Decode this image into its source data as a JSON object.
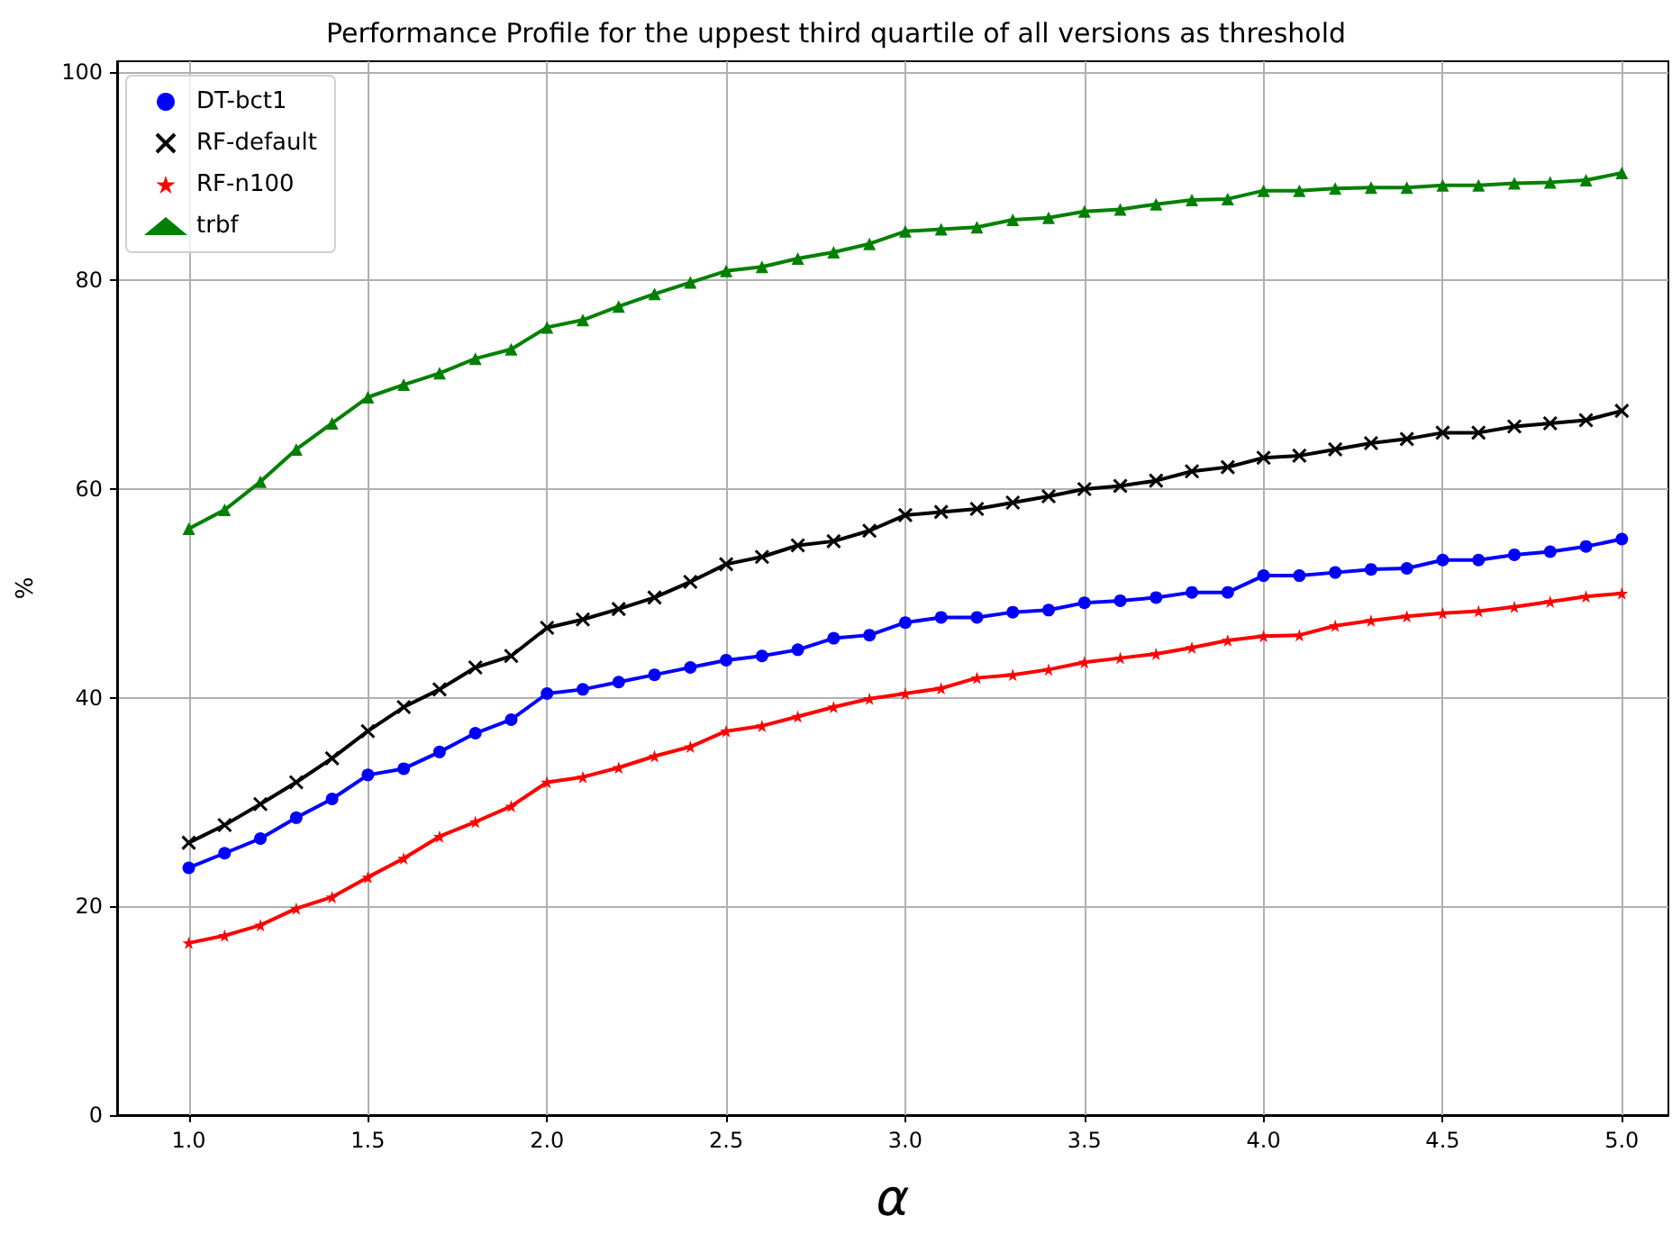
{
  "chart_data": {
    "type": "line",
    "title": "Performance Profile for the uppest third quartile of all versions as threshold",
    "xlabel": "α",
    "ylabel": "%",
    "x": [
      1.0,
      1.1,
      1.2,
      1.3,
      1.4,
      1.5,
      1.6,
      1.7,
      1.8,
      1.9,
      2.0,
      2.1,
      2.2,
      2.3,
      2.4,
      2.5,
      2.6,
      2.7,
      2.8,
      2.9,
      3.0,
      3.1,
      3.2,
      3.3,
      3.4,
      3.5,
      3.6,
      3.7,
      3.8,
      3.9,
      4.0,
      4.1,
      4.2,
      4.3,
      4.4,
      4.5,
      4.6,
      4.7,
      4.8,
      4.9,
      5.0
    ],
    "series": [
      {
        "name": "DT-bct1",
        "color": "#0000ff",
        "marker": "circle",
        "values": [
          23.7,
          25.1,
          26.5,
          28.5,
          30.3,
          32.6,
          33.2,
          34.8,
          36.6,
          37.9,
          40.4,
          40.8,
          41.5,
          42.2,
          42.9,
          43.6,
          44.0,
          44.6,
          45.7,
          46.0,
          47.2,
          47.7,
          47.7,
          48.2,
          48.4,
          49.1,
          49.3,
          49.6,
          50.1,
          50.1,
          51.7,
          51.7,
          52.0,
          52.3,
          52.4,
          53.2,
          53.2,
          53.7,
          54.0,
          54.5,
          55.2
        ]
      },
      {
        "name": "RF-default",
        "color": "#000000",
        "marker": "cross",
        "values": [
          26.1,
          27.8,
          29.8,
          31.9,
          34.2,
          36.8,
          39.1,
          40.8,
          42.9,
          44.0,
          46.7,
          47.5,
          48.5,
          49.6,
          51.1,
          52.8,
          53.5,
          54.6,
          55.0,
          56.0,
          57.5,
          57.8,
          58.1,
          58.7,
          59.3,
          60.0,
          60.3,
          60.8,
          61.7,
          62.1,
          63.0,
          63.2,
          63.8,
          64.4,
          64.8,
          65.4,
          65.4,
          66.0,
          66.3,
          66.6,
          67.5
        ]
      },
      {
        "name": "RF-n100",
        "color": "#ff0000",
        "marker": "star",
        "values": [
          16.5,
          17.2,
          18.2,
          19.8,
          20.9,
          22.8,
          24.6,
          26.7,
          28.1,
          29.6,
          31.9,
          32.4,
          33.3,
          34.4,
          35.3,
          36.8,
          37.3,
          38.2,
          39.1,
          39.9,
          40.4,
          40.9,
          41.9,
          42.2,
          42.7,
          43.4,
          43.8,
          44.2,
          44.8,
          45.5,
          45.9,
          46.0,
          46.9,
          47.4,
          47.8,
          48.1,
          48.3,
          48.7,
          49.2,
          49.7,
          50.0
        ]
      },
      {
        "name": "trbf",
        "color": "#008000",
        "marker": "triangle",
        "values": [
          56.2,
          58.0,
          60.7,
          63.8,
          66.3,
          68.8,
          70.0,
          71.1,
          72.5,
          73.4,
          75.5,
          76.2,
          77.5,
          78.7,
          79.8,
          80.9,
          81.3,
          82.1,
          82.7,
          83.5,
          84.7,
          84.9,
          85.1,
          85.8,
          86.0,
          86.6,
          86.8,
          87.3,
          87.7,
          87.8,
          88.6,
          88.6,
          88.8,
          88.9,
          88.9,
          89.1,
          89.1,
          89.3,
          89.4,
          89.6,
          90.3
        ]
      }
    ],
    "xlim": [
      0.8,
      5.13
    ],
    "xticks": [
      {
        "value": 1.0,
        "label": "1.0"
      },
      {
        "value": 1.5,
        "label": "1.5"
      },
      {
        "value": 2.0,
        "label": "2.0"
      },
      {
        "value": 2.5,
        "label": "2.5"
      },
      {
        "value": 3.0,
        "label": "3.0"
      },
      {
        "value": 3.5,
        "label": "3.5"
      },
      {
        "value": 4.0,
        "label": "4.0"
      },
      {
        "value": 4.5,
        "label": "4.5"
      },
      {
        "value": 5.0,
        "label": "5.0"
      }
    ],
    "ylim": [
      0,
      101
    ],
    "yticks": [
      0,
      20,
      40,
      60,
      80,
      100
    ],
    "grid": true,
    "legend": "top left",
    "line_style": "solid"
  }
}
